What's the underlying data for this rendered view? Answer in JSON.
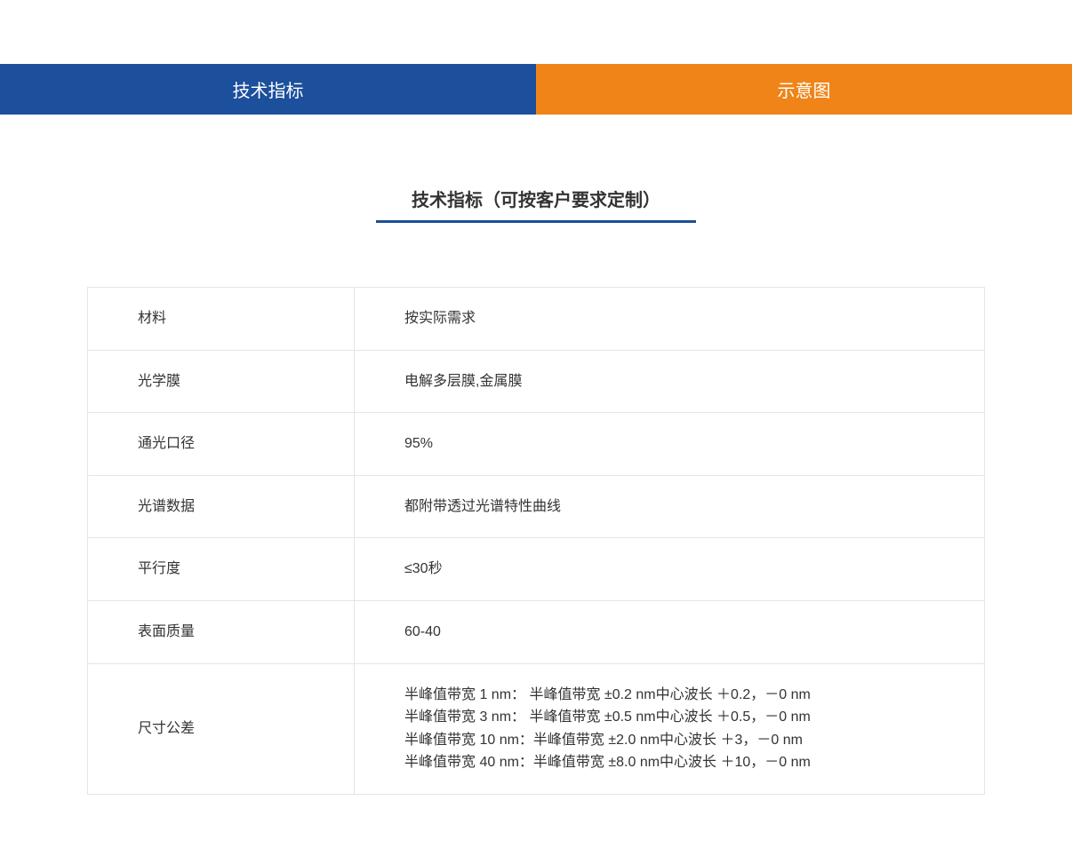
{
  "tabs": {
    "left": {
      "label": "技术指标",
      "bg": "#1c4f9c"
    },
    "right": {
      "label": "示意图",
      "bg": "#f08418"
    }
  },
  "section_title": "技术指标（可按客户要求定制）",
  "table": {
    "rows": [
      {
        "label": "材料",
        "value": "按实际需求"
      },
      {
        "label": "光学膜",
        "value": "电解多层膜,金属膜"
      },
      {
        "label": "通光口径",
        "value": "95%"
      },
      {
        "label": "光谱数据",
        "value": "都附带透过光谱特性曲线"
      },
      {
        "label": "平行度",
        "value": "≤30秒"
      },
      {
        "label": "表面质量",
        "value": "60-40"
      },
      {
        "label": "尺寸公差",
        "value": "半峰值带宽 1 nm： 半峰值带宽 ±0.2 nm中心波长 ＋0.2，－0 nm\n半峰值带宽 3 nm： 半峰值带宽 ±0.5 nm中心波长 ＋0.5，－0 nm\n半峰值带宽 10 nm：半峰值带宽 ±2.0 nm中心波长 ＋3，－0 nm\n半峰值带宽 40 nm：半峰值带宽 ±8.0 nm中心波长 ＋10，－0 nm"
      }
    ]
  },
  "styling": {
    "accent_blue": "#1c4f9c",
    "accent_orange": "#f08418",
    "border_color": "#e5e5e5",
    "text_color": "#333333",
    "background": "#ffffff",
    "title_fontsize": 20,
    "cell_fontsize": 16,
    "label_col_width": 300,
    "underline_width": 360,
    "underline_height": 3
  }
}
